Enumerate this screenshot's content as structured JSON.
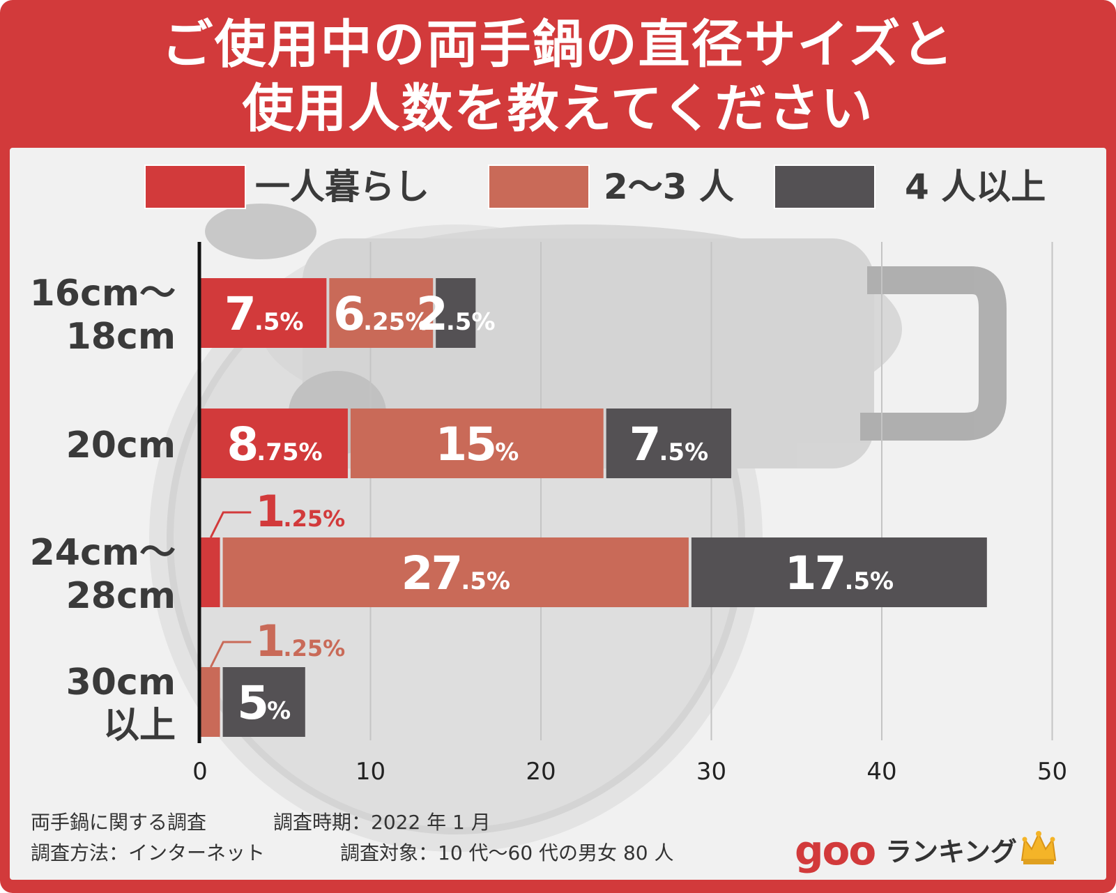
{
  "title_lines": [
    "ご使用中の両手鍋の直径サイズと",
    "使用人数を教えてください"
  ],
  "footnote": {
    "line1_left": "両手鍋に関する調査",
    "line1_right": "調査時期：2022 年 1 月",
    "line2_left": "調査方法：インターネット",
    "line2_right": "調査対象：10 代〜60 代の男女 80 人"
  },
  "brand": {
    "logo": "goo",
    "name": "ランキング",
    "icon": "crown-icon"
  },
  "colors": {
    "frame": "#d23a3b",
    "single": "#d23a3b",
    "two_three": "#c96a58",
    "four_plus": "#545154"
  },
  "chart_data": {
    "type": "bar",
    "orientation": "horizontal",
    "stacked": true,
    "categories": [
      [
        "16cm〜",
        "18cm"
      ],
      [
        "20cm"
      ],
      [
        "24cm〜",
        "28cm"
      ],
      [
        "30cm",
        "以上"
      ]
    ],
    "series": [
      {
        "name": "一人暮らし",
        "color": "#d23a3b",
        "values": [
          7.5,
          8.75,
          1.25,
          0
        ]
      },
      {
        "name": "2〜3 人",
        "color": "#c96a58",
        "values": [
          6.25,
          15,
          27.5,
          1.25
        ]
      },
      {
        "name": "4 人以上",
        "color": "#545154",
        "values": [
          2.5,
          7.5,
          17.5,
          5
        ]
      }
    ],
    "value_labels": [
      [
        {
          "int": "7",
          "dec": ".5%"
        },
        {
          "int": "6",
          "dec": ".25%"
        },
        {
          "int": "2",
          "dec": ".5%"
        }
      ],
      [
        {
          "int": "8",
          "dec": ".75%"
        },
        {
          "int": "15",
          "dec": "%"
        },
        {
          "int": "7",
          "dec": ".5%"
        }
      ],
      [
        {
          "int": "1",
          "dec": ".25%"
        },
        {
          "int": "27",
          "dec": ".5%"
        },
        {
          "int": "17",
          "dec": ".5%"
        }
      ],
      [
        null,
        {
          "int": "1",
          "dec": ".25%"
        },
        {
          "int": "5",
          "dec": "%"
        }
      ]
    ],
    "xlim": [
      0,
      50
    ],
    "xticks": [
      0,
      10,
      20,
      30,
      40,
      50
    ],
    "grid": true,
    "legend_position": "top"
  }
}
